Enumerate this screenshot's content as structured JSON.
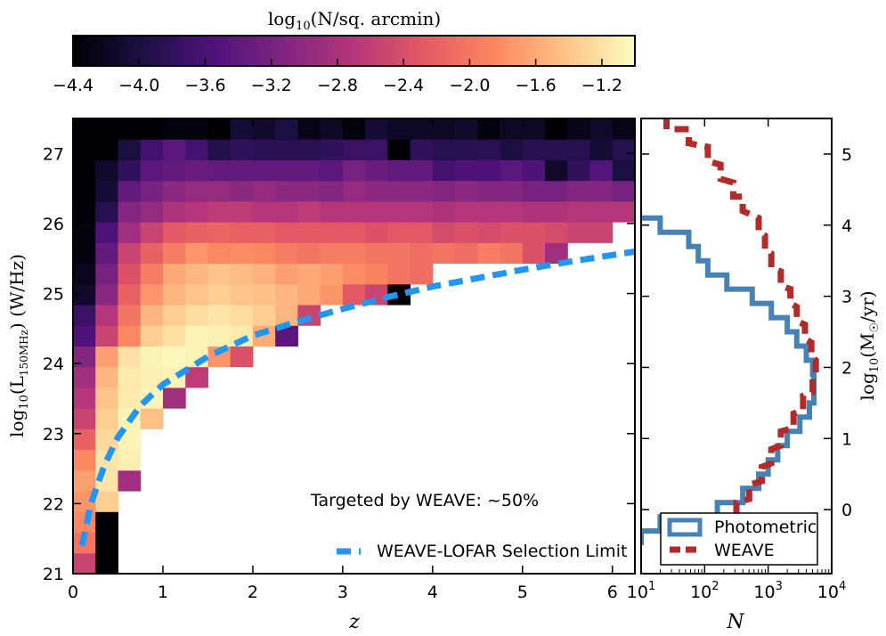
{
  "chart_data": [
    {
      "type": "colorbar",
      "title": "log10(N/sq.arcmin)",
      "title_parts": {
        "pre": "log",
        "sub": "10",
        "post": "(N/sq. arcmin)"
      },
      "range": [
        -4.4,
        -1.0
      ],
      "ticks": [
        "−4.4",
        "−4.0",
        "−3.6",
        "−3.2",
        "−2.8",
        "−2.4",
        "−2.0",
        "−1.6",
        "−1.2"
      ],
      "tick_values": [
        -4.4,
        -4.0,
        -3.6,
        -3.2,
        -2.8,
        -2.4,
        -2.0,
        -1.6,
        -1.2
      ],
      "colormap": "magma",
      "colormap_stops": [
        "#000004",
        "#1c1044",
        "#4f127b",
        "#812581",
        "#b5367a",
        "#e55964",
        "#fb8761",
        "#fec287",
        "#fcfdbf"
      ]
    },
    {
      "type": "heatmap",
      "xlabel": "z",
      "ylabel": "log10(L_150MHz) (W/Hz)",
      "ylabel_parts": {
        "pre": "log",
        "sub1": "10",
        "mid": "(L",
        "sub2": "150MHz",
        "post": ") (W/Hz)"
      },
      "xlim": [
        0,
        6.25
      ],
      "ylim": [
        21,
        27.5
      ],
      "xticks": [
        0,
        1,
        2,
        3,
        4,
        5,
        6
      ],
      "yticks": [
        21,
        22,
        23,
        24,
        25,
        26,
        27
      ],
      "bin_width_z": 0.25,
      "bin_height_logL": 0.3333,
      "annotation": "Targeted by WEAVE: ~50%",
      "legend": {
        "position": "bottom-right",
        "entries": [
          {
            "label": "WEAVE-LOFAR Selection Limit",
            "color": "#2196f3",
            "style": "dashed"
          }
        ]
      },
      "selection_limit": {
        "color": "#2196f3",
        "z": [
          0.1,
          0.2,
          0.35,
          0.5,
          0.75,
          1.0,
          1.5,
          2.0,
          2.5,
          3.0,
          3.5,
          4.0,
          4.5,
          5.0,
          5.5,
          6.0,
          6.25
        ],
        "logL": [
          21.4,
          22.0,
          22.55,
          22.95,
          23.4,
          23.7,
          24.1,
          24.4,
          24.6,
          24.78,
          24.95,
          25.1,
          25.22,
          25.34,
          25.45,
          25.55,
          25.6
        ]
      },
      "cells": [
        [
          0,
          21.33,
          0.8
        ],
        [
          1,
          21.33,
          0.0
        ],
        [
          2,
          21.33,
          0.0
        ],
        [
          3,
          21.33,
          0.0
        ],
        [
          4,
          21.33,
          0.0
        ],
        [
          5,
          21.33,
          0.0
        ],
        [
          6,
          21.33,
          0.0
        ],
        [
          7,
          21.33,
          0.0
        ],
        [
          8,
          21.33,
          0.0
        ],
        [
          9,
          21.33,
          0.0
        ],
        [
          10,
          21.33,
          0.0
        ],
        [
          11,
          21.33,
          0.0
        ],
        [
          12,
          21.33,
          0.0
        ],
        [
          13,
          21.33,
          0.0
        ],
        [
          14,
          21.33,
          0.0
        ],
        [
          15,
          21.33,
          0.0
        ],
        [
          16,
          21.33,
          0.0
        ],
        [
          17,
          21.33,
          0.0
        ],
        [
          18,
          21.33,
          0.0
        ],
        [
          19,
          21.33,
          0.0
        ],
        [
          20,
          21.33,
          0.0
        ],
        [
          21,
          21.33,
          0.0
        ],
        [
          22,
          21.33,
          0.0
        ],
        [
          23,
          21.33,
          0.0
        ],
        [
          24,
          21.33,
          0.0
        ]
      ],
      "cell_rows": [
        {
          "row": 0,
          "vals": [
            0.55,
            0.0
          ]
        },
        {
          "row": 1,
          "vals": [
            0.7,
            0.0
          ]
        },
        {
          "row": 2,
          "vals": [
            0.75,
            0.0
          ]
        },
        {
          "row": 3,
          "vals": [
            0.78,
            0.9
          ]
        },
        {
          "row": 4,
          "vals": [
            0.8,
            0.95,
            0.45
          ]
        },
        {
          "row": 5,
          "vals": [
            0.75,
            0.95,
            0.97
          ]
        },
        {
          "row": 6,
          "vals": [
            0.65,
            0.92,
            0.98
          ]
        },
        {
          "row": 7,
          "vals": [
            0.55,
            0.9,
            0.98,
            0.87
          ]
        },
        {
          "row": 8,
          "vals": [
            0.5,
            0.88,
            0.96,
            0.98,
            0.45
          ]
        },
        {
          "row": 9,
          "vals": [
            0.45,
            0.85,
            0.96,
            0.97,
            0.98,
            0.52
          ]
        },
        {
          "row": 10,
          "vals": [
            0.38,
            0.8,
            0.94,
            0.98,
            0.99,
            0.98,
            0.78,
            0.6
          ]
        },
        {
          "row": 11,
          "vals": [
            0.25,
            0.55,
            0.75,
            0.9,
            0.94,
            0.98,
            0.97,
            0.96,
            0.83,
            0.28
          ]
        },
        {
          "row": 12,
          "vals": [
            0.2,
            0.5,
            0.7,
            0.85,
            0.9,
            0.93,
            0.95,
            0.93,
            0.9,
            0.85,
            0.55
          ]
        },
        {
          "row": 13,
          "vals": [
            0.08,
            0.4,
            0.65,
            0.78,
            0.85,
            0.88,
            0.9,
            0.88,
            0.87,
            0.85,
            0.82,
            0.78,
            0.62,
            0.55,
            0.0
          ]
        },
        {
          "row": 14,
          "vals": [
            0.05,
            0.35,
            0.6,
            0.72,
            0.82,
            0.85,
            0.88,
            0.86,
            0.84,
            0.8,
            0.82,
            0.8,
            0.76,
            0.74,
            0.7,
            0.68
          ]
        },
        {
          "row": 15,
          "vals": [
            0.02,
            0.3,
            0.55,
            0.65,
            0.72,
            0.78,
            0.75,
            0.76,
            0.75,
            0.72,
            0.7,
            0.72,
            0.72,
            0.7,
            0.7,
            0.68,
            0.7,
            0.68,
            0.72,
            0.7,
            0.6,
            0.45
          ]
        },
        {
          "row": 16,
          "vals": [
            0.02,
            0.25,
            0.45,
            0.55,
            0.62,
            0.65,
            0.66,
            0.64,
            0.64,
            0.62,
            0.62,
            0.62,
            0.62,
            0.6,
            0.62,
            0.62,
            0.58,
            0.6,
            0.58,
            0.6,
            0.6,
            0.58,
            0.55,
            0.55
          ]
        },
        {
          "row": 17,
          "vals": [
            0.01,
            0.15,
            0.38,
            0.42,
            0.48,
            0.5,
            0.52,
            0.52,
            0.5,
            0.5,
            0.52,
            0.5,
            0.5,
            0.5,
            0.5,
            0.5,
            0.48,
            0.5,
            0.5,
            0.5,
            0.48,
            0.48,
            0.5,
            0.5,
            0.5
          ]
        },
        {
          "row": 18,
          "vals": [
            0.0,
            0.1,
            0.3,
            0.35,
            0.4,
            0.42,
            0.42,
            0.4,
            0.42,
            0.4,
            0.4,
            0.38,
            0.42,
            0.4,
            0.4,
            0.4,
            0.38,
            0.4,
            0.38,
            0.38,
            0.35,
            0.35,
            0.38,
            0.38,
            0.35
          ]
        },
        {
          "row": 19,
          "vals": [
            0.0,
            0.08,
            0.18,
            0.28,
            0.3,
            0.32,
            0.3,
            0.3,
            0.3,
            0.3,
            0.3,
            0.28,
            0.35,
            0.32,
            0.3,
            0.3,
            0.22,
            0.25,
            0.25,
            0.28,
            0.25,
            0.08,
            0.18,
            0.26,
            0.12
          ]
        },
        {
          "row": 20,
          "vals": [
            0.0,
            0.0,
            0.12,
            0.22,
            0.28,
            0.22,
            0.14,
            0.18,
            0.16,
            0.16,
            0.16,
            0.18,
            0.2,
            0.2,
            0.0,
            0.18,
            0.15,
            0.15,
            0.16,
            0.12,
            0.15,
            0.15,
            0.15,
            0.1,
            0.15
          ]
        },
        {
          "row": 21,
          "vals": [
            0.0,
            0.0,
            0.0,
            0.0,
            0.02,
            0.02,
            0.0,
            0.1,
            0.08,
            0.12,
            0.04,
            0.06,
            0.02,
            0.1,
            0.06,
            0.06,
            0.06,
            0.08,
            0.02,
            0.06,
            0.06,
            0.0,
            0.04,
            0.08,
            0.04
          ]
        }
      ]
    },
    {
      "type": "step",
      "xlabel": "N",
      "ylabel": "log10(M☉/yr)",
      "ylabel_parts": {
        "pre": "log",
        "sub": "10",
        "post": "(M",
        "sun": "☉",
        "end": "/yr)"
      },
      "xscale": "log",
      "xlim_log10": [
        1,
        4
      ],
      "ylim": [
        -0.9,
        5.5
      ],
      "xticks": [
        {
          "base": "10",
          "exp": "1",
          "v": 1
        },
        {
          "base": "10",
          "exp": "2",
          "v": 2
        },
        {
          "base": "10",
          "exp": "3",
          "v": 3
        },
        {
          "base": "10",
          "exp": "4",
          "v": 4
        }
      ],
      "yticks": [
        0,
        1,
        2,
        3,
        4,
        5
      ],
      "legend": {
        "position": "bottom-right"
      },
      "series": [
        {
          "name": "Photometric",
          "color": "#4582b5",
          "style": "solid",
          "logN": [
            0.95,
            1.3,
            1.75,
            1.9,
            2.05,
            2.35,
            2.75,
            3.05,
            3.3,
            3.45,
            3.6,
            3.7,
            3.72,
            3.72,
            3.65,
            3.5,
            3.3,
            3.15,
            3.0,
            2.85,
            2.6,
            2.2,
            1.3,
            1.0
          ],
          "logM": [
            4.3,
            4.1,
            3.9,
            3.7,
            3.5,
            3.3,
            3.1,
            2.9,
            2.7,
            2.5,
            2.3,
            2.1,
            1.9,
            1.7,
            1.5,
            1.3,
            1.1,
            0.9,
            0.7,
            0.5,
            0.3,
            0.1,
            -0.1,
            -0.3
          ]
        },
        {
          "name": "WEAVE",
          "color": "#b22a2a",
          "style": "dashed",
          "logN": [
            1.4,
            1.75,
            2.05,
            2.25,
            2.45,
            2.6,
            2.85,
            2.95,
            3.05,
            3.2,
            3.35,
            3.45,
            3.58,
            3.68,
            3.75,
            3.7,
            3.55,
            3.4,
            3.2,
            3.05,
            2.9,
            2.7,
            2.5,
            2.2
          ],
          "logM": [
            5.55,
            5.35,
            5.1,
            4.85,
            4.6,
            4.4,
            4.1,
            3.85,
            3.6,
            3.35,
            3.1,
            2.85,
            2.6,
            2.35,
            2.1,
            1.85,
            1.6,
            1.35,
            1.1,
            0.85,
            0.6,
            0.35,
            0.1,
            -0.15
          ]
        }
      ]
    }
  ]
}
